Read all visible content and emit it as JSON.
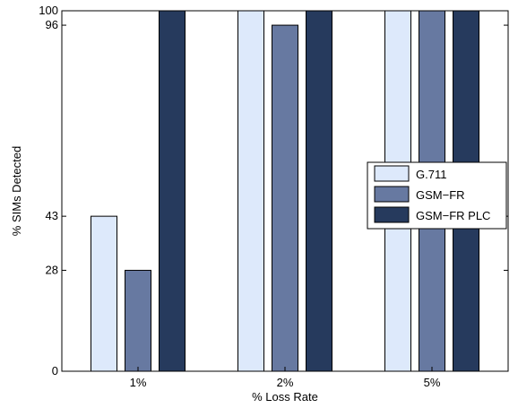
{
  "chart_data": {
    "type": "bar",
    "title": "",
    "xlabel": "% Loss Rate",
    "ylabel": "% SIMs Detected",
    "categories": [
      "1%",
      "2%",
      "5%"
    ],
    "series": [
      {
        "name": "G.711",
        "values": [
          43,
          100,
          100
        ],
        "color": "#dde9fb"
      },
      {
        "name": "GSM−FR",
        "values": [
          28,
          96,
          100
        ],
        "color": "#6779a1"
      },
      {
        "name": "GSM−FR PLC",
        "values": [
          100,
          100,
          100
        ],
        "color": "#263a5d"
      }
    ],
    "yticks": [
      "0",
      "28",
      "43",
      "96",
      "100"
    ],
    "ylim": [
      0,
      100
    ],
    "grid": false,
    "legend_position": "right"
  }
}
